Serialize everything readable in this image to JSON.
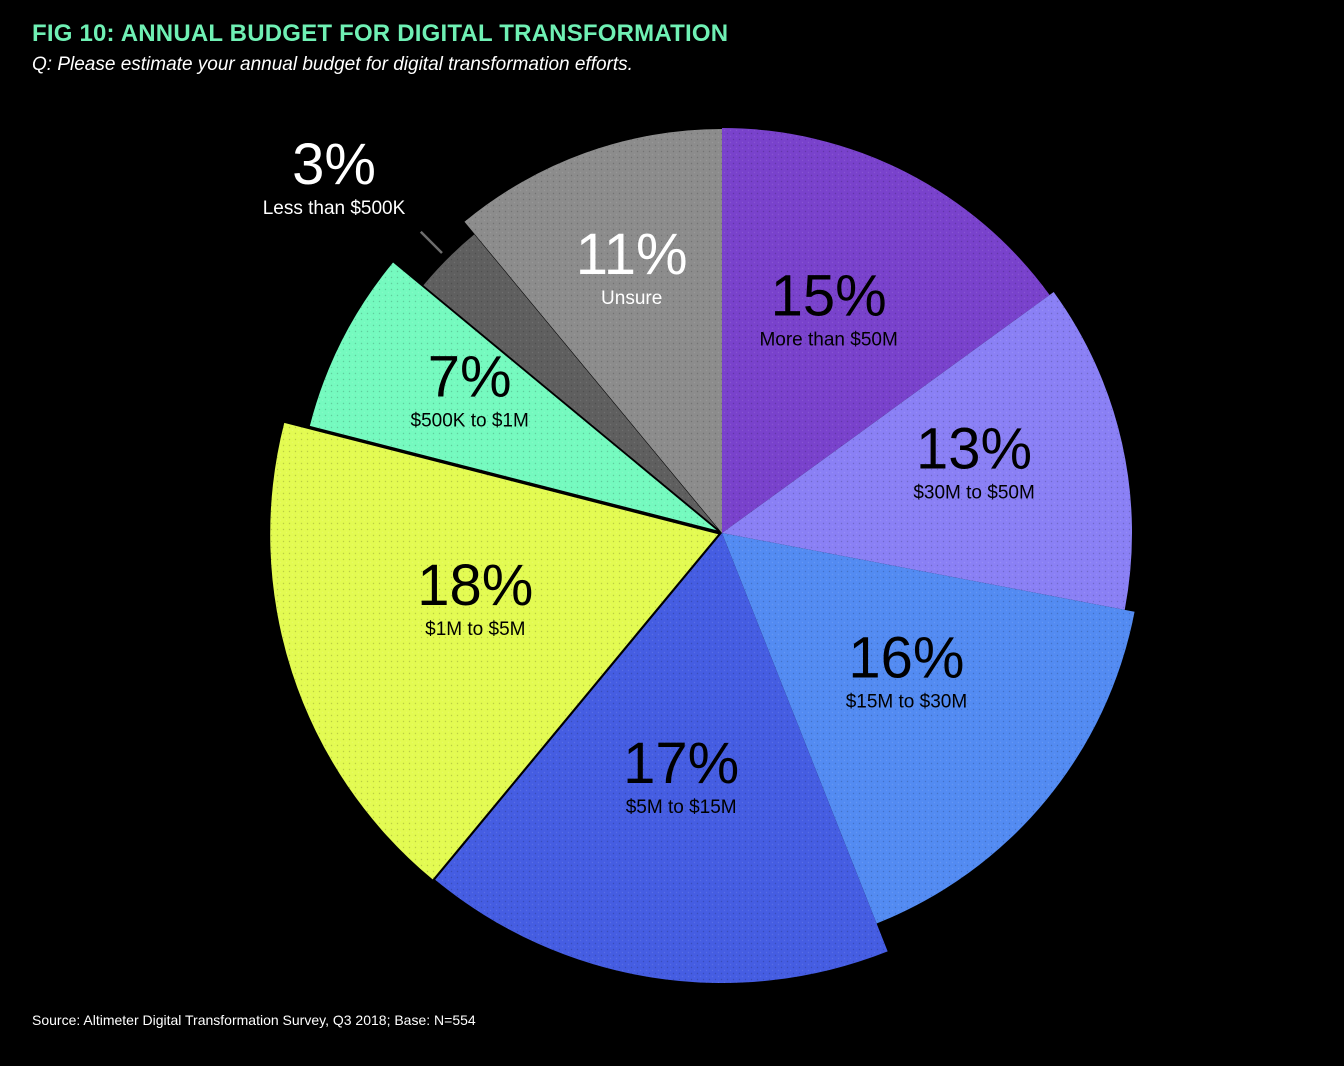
{
  "title": "FIG 10: ANNUAL BUDGET FOR DIGITAL TRANSFORMATION",
  "subtitle": "Q: Please estimate your annual budget for digital transformation efforts.",
  "source": "Source: Altimeter Digital Transformation Survey, Q3 2018; Base: N=554",
  "colors": {
    "background": "#000000",
    "title": "#6FF0B4",
    "text": "#ffffff"
  },
  "chart_data": {
    "type": "pie",
    "title": "FIG 10: ANNUAL BUDGET FOR DIGITAL TRANSFORMATION",
    "start_angle_deg": 0,
    "direction": "clockwise",
    "exploded": true,
    "slices": [
      {
        "label": "More than $50M",
        "value_label": "15%",
        "value": 15,
        "color": "#7942CC",
        "text_color": "#000000"
      },
      {
        "label": "$30M to $50M",
        "value_label": "13%",
        "value": 13,
        "color": "#8A80F5",
        "text_color": "#000000"
      },
      {
        "label": "$15M to $30M",
        "value_label": "16%",
        "value": 16,
        "color": "#538BF2",
        "text_color": "#000000"
      },
      {
        "label": "$5M to $15M",
        "value_label": "17%",
        "value": 17,
        "color": "#455DE2",
        "text_color": "#000000"
      },
      {
        "label": "$1M to $5M",
        "value_label": "18%",
        "value": 18,
        "color": "#E3FB52",
        "text_color": "#000000"
      },
      {
        "label": "$500K to $1M",
        "value_label": "7%",
        "value": 7,
        "color": "#75FABF",
        "text_color": "#000000"
      },
      {
        "label": "Less than $500K",
        "value_label": "3%",
        "value": 3,
        "color": "#5F5F5F",
        "text_color": "#ffffff",
        "label_outside": true
      },
      {
        "label": "Unsure",
        "value_label": "11%",
        "value": 11,
        "color": "#8C8C8C",
        "text_color": "#ffffff"
      }
    ]
  }
}
